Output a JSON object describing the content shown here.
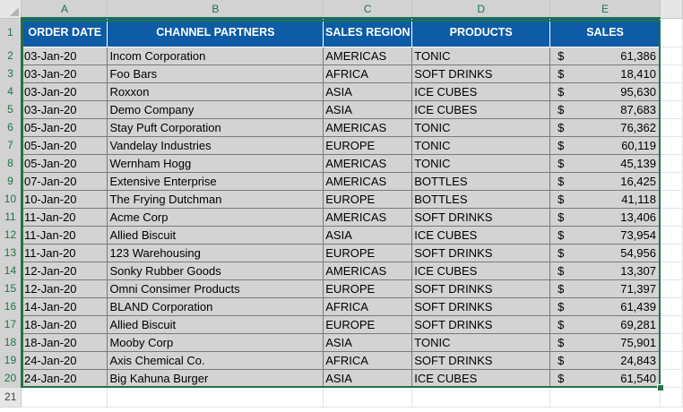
{
  "column_letters": [
    "A",
    "B",
    "C",
    "D",
    "E"
  ],
  "row_numbers": [
    "1",
    "2",
    "3",
    "4",
    "5",
    "6",
    "7",
    "8",
    "9",
    "10",
    "11",
    "12",
    "13",
    "14",
    "15",
    "16",
    "17",
    "18",
    "19",
    "20",
    "21"
  ],
  "headers": [
    "ORDER DATE",
    "CHANNEL PARTNERS",
    "SALES REGION",
    "PRODUCTS",
    "SALES"
  ],
  "currency_symbol": "$",
  "rows": [
    {
      "date": "03-Jan-20",
      "partner": "Incom Corporation",
      "region": "AMERICAS",
      "product": "TONIC",
      "sales": "61,386"
    },
    {
      "date": "03-Jan-20",
      "partner": "Foo Bars",
      "region": "AFRICA",
      "product": "SOFT DRINKS",
      "sales": "18,410"
    },
    {
      "date": "03-Jan-20",
      "partner": "Roxxon",
      "region": "ASIA",
      "product": "ICE CUBES",
      "sales": "95,630"
    },
    {
      "date": "03-Jan-20",
      "partner": "Demo Company",
      "region": "ASIA",
      "product": "ICE CUBES",
      "sales": "87,683"
    },
    {
      "date": "05-Jan-20",
      "partner": "Stay Puft Corporation",
      "region": "AMERICAS",
      "product": "TONIC",
      "sales": "76,362"
    },
    {
      "date": "05-Jan-20",
      "partner": "Vandelay Industries",
      "region": "EUROPE",
      "product": "TONIC",
      "sales": "60,119"
    },
    {
      "date": "05-Jan-20",
      "partner": "Wernham Hogg",
      "region": "AMERICAS",
      "product": "TONIC",
      "sales": "45,139"
    },
    {
      "date": "07-Jan-20",
      "partner": "Extensive Enterprise",
      "region": "AMERICAS",
      "product": "BOTTLES",
      "sales": "16,425"
    },
    {
      "date": "10-Jan-20",
      "partner": "The Frying Dutchman",
      "region": "EUROPE",
      "product": "BOTTLES",
      "sales": "41,118"
    },
    {
      "date": "11-Jan-20",
      "partner": "Acme Corp",
      "region": "AMERICAS",
      "product": "SOFT DRINKS",
      "sales": "13,406"
    },
    {
      "date": "11-Jan-20",
      "partner": "Allied Biscuit",
      "region": "ASIA",
      "product": "ICE CUBES",
      "sales": "73,954"
    },
    {
      "date": "11-Jan-20",
      "partner": "123 Warehousing",
      "region": "EUROPE",
      "product": "SOFT DRINKS",
      "sales": "54,956"
    },
    {
      "date": "12-Jan-20",
      "partner": "Sonky Rubber Goods",
      "region": "AMERICAS",
      "product": "ICE CUBES",
      "sales": "13,307"
    },
    {
      "date": "12-Jan-20",
      "partner": "Omni Consimer Products",
      "region": "EUROPE",
      "product": "SOFT DRINKS",
      "sales": "71,397"
    },
    {
      "date": "14-Jan-20",
      "partner": "BLAND Corporation",
      "region": "AFRICA",
      "product": "SOFT DRINKS",
      "sales": "61,439"
    },
    {
      "date": "18-Jan-20",
      "partner": "Allied Biscuit",
      "region": "EUROPE",
      "product": "SOFT DRINKS",
      "sales": "69,281"
    },
    {
      "date": "18-Jan-20",
      "partner": "Mooby Corp",
      "region": "ASIA",
      "product": "TONIC",
      "sales": "75,901"
    },
    {
      "date": "24-Jan-20",
      "partner": "Axis Chemical Co.",
      "region": "AFRICA",
      "product": "SOFT DRINKS",
      "sales": "24,843"
    },
    {
      "date": "24-Jan-20",
      "partner": "Big Kahuna Burger",
      "region": "ASIA",
      "product": "ICE CUBES",
      "sales": "61,540"
    }
  ],
  "colors": {
    "header_fill": "#0e5ba6",
    "data_fill": "#d3d3d3",
    "selection": "#217346"
  }
}
